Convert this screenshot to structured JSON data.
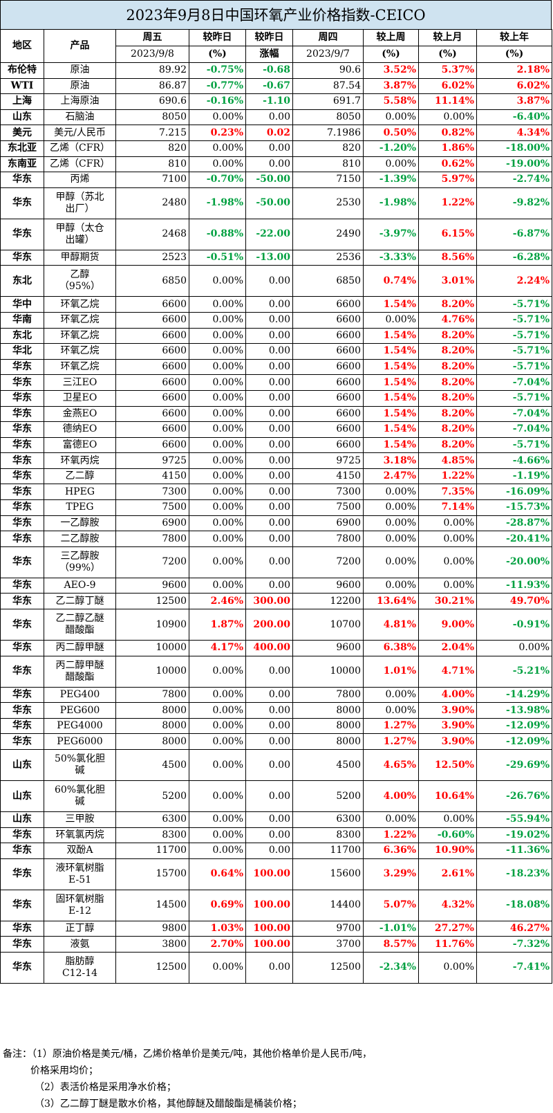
{
  "title": "2023年9月8日中国环氧产业价格指数-CEICO",
  "headers": {
    "region": "地区",
    "product": "产品",
    "fri": "周五",
    "dod": "较昨日",
    "dod2": "较昨日",
    "thu": "周四",
    "wow": "较上周",
    "mom": "较上月",
    "yoy": "较上年"
  },
  "subheaders": {
    "fri": "2023/9/8",
    "dod": "(%)",
    "dod2": "涨幅",
    "thu": "2023/9/7",
    "wow": "(%)",
    "mom": "(%)",
    "yoy": "(%)"
  },
  "colors": {
    "title_bg": "#cfe3f0",
    "up": "#ff0000",
    "down": "#00a040"
  },
  "rows": [
    {
      "region": "布伦特",
      "product": "原油",
      "fri": "89.92",
      "dod_pct": "-0.75%",
      "dod_amt": "-0.68",
      "thu": "90.6",
      "wow": "3.52%",
      "mom": "5.37%",
      "yoy": "2.18%"
    },
    {
      "region": "WTI",
      "product": "原油",
      "fri": "86.87",
      "dod_pct": "-0.77%",
      "dod_amt": "-0.67",
      "thu": "87.54",
      "wow": "3.87%",
      "mom": "6.02%",
      "yoy": "6.02%"
    },
    {
      "region": "上海",
      "product": "上海原油",
      "fri": "690.6",
      "dod_pct": "-0.16%",
      "dod_amt": "-1.10",
      "thu": "691.7",
      "wow": "5.58%",
      "mom": "11.14%",
      "yoy": "3.87%"
    },
    {
      "region": "山东",
      "product": "石脑油",
      "fri": "8050",
      "dod_pct": "0.00%",
      "dod_amt": "0.00",
      "thu": "8050",
      "wow": "0.00%",
      "mom": "0.00%",
      "yoy": "-6.40%"
    },
    {
      "region": "美元",
      "product": "美元/人民币",
      "fri": "7.215",
      "dod_pct": "0.23%",
      "dod_amt": "0.02",
      "thu": "7.1986",
      "wow": "0.50%",
      "mom": "0.82%",
      "yoy": "4.34%"
    },
    {
      "region": "东北亚",
      "product": "乙烯（CFR）",
      "fri": "820",
      "dod_pct": "0.00%",
      "dod_amt": "0.00",
      "thu": "820",
      "wow": "-1.20%",
      "mom": "1.86%",
      "yoy": "-18.00%"
    },
    {
      "region": "东南亚",
      "product": "乙烯（CFR）",
      "fri": "810",
      "dod_pct": "0.00%",
      "dod_amt": "0.00",
      "thu": "810",
      "wow": "0.00%",
      "mom": "0.62%",
      "yoy": "-19.00%"
    },
    {
      "region": "华东",
      "product": "丙烯",
      "fri": "7100",
      "dod_pct": "-0.70%",
      "dod_amt": "-50.00",
      "thu": "7150",
      "wow": "-1.39%",
      "mom": "5.97%",
      "yoy": "-2.74%"
    },
    {
      "region": "华东",
      "product": "甲醇（苏北\n出厂）",
      "fri": "2480",
      "dod_pct": "-1.98%",
      "dod_amt": "-50.00",
      "thu": "2530",
      "wow": "-1.98%",
      "mom": "1.22%",
      "yoy": "-9.82%"
    },
    {
      "region": "华东",
      "product": "甲醇（太仓\n出罐）",
      "fri": "2468",
      "dod_pct": "-0.88%",
      "dod_amt": "-22.00",
      "thu": "2490",
      "wow": "-3.97%",
      "mom": "6.15%",
      "yoy": "-6.87%"
    },
    {
      "region": "华东",
      "product": "甲醇期货",
      "fri": "2523",
      "dod_pct": "-0.51%",
      "dod_amt": "-13.00",
      "thu": "2536",
      "wow": "-3.33%",
      "mom": "8.56%",
      "yoy": "-6.28%"
    },
    {
      "region": "东北",
      "product": "乙醇\n（95%）",
      "fri": "6850",
      "dod_pct": "0.00%",
      "dod_amt": "0.00",
      "thu": "6850",
      "wow": "0.74%",
      "mom": "3.01%",
      "yoy": "2.24%"
    },
    {
      "region": "华中",
      "product": "环氧乙烷",
      "fri": "6600",
      "dod_pct": "0.00%",
      "dod_amt": "0.00",
      "thu": "6600",
      "wow": "1.54%",
      "mom": "8.20%",
      "yoy": "-5.71%"
    },
    {
      "region": "华南",
      "product": "环氧乙烷",
      "fri": "6600",
      "dod_pct": "0.00%",
      "dod_amt": "0.00",
      "thu": "6600",
      "wow": "0.00%",
      "mom": "4.76%",
      "yoy": "-5.71%"
    },
    {
      "region": "东北",
      "product": "环氧乙烷",
      "fri": "6600",
      "dod_pct": "0.00%",
      "dod_amt": "0.00",
      "thu": "6600",
      "wow": "1.54%",
      "mom": "8.20%",
      "yoy": "-5.71%"
    },
    {
      "region": "华北",
      "product": "环氧乙烷",
      "fri": "6600",
      "dod_pct": "0.00%",
      "dod_amt": "0.00",
      "thu": "6600",
      "wow": "1.54%",
      "mom": "8.20%",
      "yoy": "-5.71%"
    },
    {
      "region": "华东",
      "product": "环氧乙烷",
      "fri": "6600",
      "dod_pct": "0.00%",
      "dod_amt": "0.00",
      "thu": "6600",
      "wow": "1.54%",
      "mom": "8.20%",
      "yoy": "-5.71%"
    },
    {
      "region": "华东",
      "product": "三江EO",
      "fri": "6600",
      "dod_pct": "0.00%",
      "dod_amt": "0.00",
      "thu": "6600",
      "wow": "1.54%",
      "mom": "8.20%",
      "yoy": "-7.04%"
    },
    {
      "region": "华东",
      "product": "卫星EO",
      "fri": "6600",
      "dod_pct": "0.00%",
      "dod_amt": "0.00",
      "thu": "6600",
      "wow": "1.54%",
      "mom": "8.20%",
      "yoy": "-5.71%"
    },
    {
      "region": "华东",
      "product": "金燕EO",
      "fri": "6600",
      "dod_pct": "0.00%",
      "dod_amt": "0.00",
      "thu": "6600",
      "wow": "1.54%",
      "mom": "8.20%",
      "yoy": "-7.04%"
    },
    {
      "region": "华东",
      "product": "德纳EO",
      "fri": "6600",
      "dod_pct": "0.00%",
      "dod_amt": "0.00",
      "thu": "6600",
      "wow": "1.54%",
      "mom": "8.20%",
      "yoy": "-7.04%"
    },
    {
      "region": "华东",
      "product": "富德EO",
      "fri": "6600",
      "dod_pct": "0.00%",
      "dod_amt": "0.00",
      "thu": "6600",
      "wow": "1.54%",
      "mom": "8.20%",
      "yoy": "-5.71%"
    },
    {
      "region": "华东",
      "product": "环氧丙烷",
      "fri": "9725",
      "dod_pct": "0.00%",
      "dod_amt": "0.00",
      "thu": "9725",
      "wow": "3.18%",
      "mom": "4.85%",
      "yoy": "-4.66%"
    },
    {
      "region": "华东",
      "product": "乙二醇",
      "fri": "4150",
      "dod_pct": "0.00%",
      "dod_amt": "0.00",
      "thu": "4150",
      "wow": "2.47%",
      "mom": "1.22%",
      "yoy": "-1.19%"
    },
    {
      "region": "华东",
      "product": "HPEG",
      "fri": "7300",
      "dod_pct": "0.00%",
      "dod_amt": "0.00",
      "thu": "7300",
      "wow": "0.00%",
      "mom": "7.35%",
      "yoy": "-16.09%"
    },
    {
      "region": "华东",
      "product": "TPEG",
      "fri": "7500",
      "dod_pct": "0.00%",
      "dod_amt": "0.00",
      "thu": "7500",
      "wow": "0.00%",
      "mom": "7.14%",
      "yoy": "-15.73%"
    },
    {
      "region": "华东",
      "product": "一乙醇胺",
      "fri": "6900",
      "dod_pct": "0.00%",
      "dod_amt": "0.00",
      "thu": "6900",
      "wow": "0.00%",
      "mom": "0.00%",
      "yoy": "-28.87%"
    },
    {
      "region": "华东",
      "product": "二乙醇胺",
      "fri": "7800",
      "dod_pct": "0.00%",
      "dod_amt": "0.00",
      "thu": "7800",
      "wow": "0.00%",
      "mom": "0.00%",
      "yoy": "-20.41%"
    },
    {
      "region": "华东",
      "product": "三乙醇胺\n（99%）",
      "fri": "7200",
      "dod_pct": "0.00%",
      "dod_amt": "0.00",
      "thu": "7200",
      "wow": "0.00%",
      "mom": "0.00%",
      "yoy": "-20.00%"
    },
    {
      "region": "华东",
      "product": "AEO-9",
      "fri": "9600",
      "dod_pct": "0.00%",
      "dod_amt": "0.00",
      "thu": "9600",
      "wow": "0.00%",
      "mom": "0.00%",
      "yoy": "-11.93%"
    },
    {
      "region": "华东",
      "product": "乙二醇丁醚",
      "fri": "12500",
      "dod_pct": "2.46%",
      "dod_amt": "300.00",
      "thu": "12200",
      "wow": "13.64%",
      "mom": "30.21%",
      "yoy": "49.70%"
    },
    {
      "region": "华东",
      "product": "乙二醇乙醚\n醋酸酯",
      "fri": "10900",
      "dod_pct": "1.87%",
      "dod_amt": "200.00",
      "thu": "10700",
      "wow": "4.81%",
      "mom": "9.00%",
      "yoy": "-0.91%"
    },
    {
      "region": "华东",
      "product": "丙二醇甲醚",
      "fri": "10000",
      "dod_pct": "4.17%",
      "dod_amt": "400.00",
      "thu": "9600",
      "wow": "6.38%",
      "mom": "2.04%",
      "yoy": "0.00%"
    },
    {
      "region": "华东",
      "product": "丙二醇甲醚\n醋酸酯",
      "fri": "10000",
      "dod_pct": "0.00%",
      "dod_amt": "0.00",
      "thu": "10000",
      "wow": "1.01%",
      "mom": "4.71%",
      "yoy": "-5.21%"
    },
    {
      "region": "华东",
      "product": "PEG400",
      "fri": "7800",
      "dod_pct": "0.00%",
      "dod_amt": "0.00",
      "thu": "7800",
      "wow": "0.00%",
      "mom": "4.00%",
      "yoy": "-14.29%"
    },
    {
      "region": "华东",
      "product": "PEG600",
      "fri": "8000",
      "dod_pct": "0.00%",
      "dod_amt": "0.00",
      "thu": "8000",
      "wow": "0.00%",
      "mom": "3.90%",
      "yoy": "-13.98%"
    },
    {
      "region": "华东",
      "product": "PEG4000",
      "fri": "8000",
      "dod_pct": "0.00%",
      "dod_amt": "0.00",
      "thu": "8000",
      "wow": "1.27%",
      "mom": "3.90%",
      "yoy": "-12.09%"
    },
    {
      "region": "华东",
      "product": "PEG6000",
      "fri": "8000",
      "dod_pct": "0.00%",
      "dod_amt": "0.00",
      "thu": "8000",
      "wow": "1.27%",
      "mom": "3.90%",
      "yoy": "-12.09%"
    },
    {
      "region": "山东",
      "product": "50%氯化胆\n碱",
      "fri": "4500",
      "dod_pct": "0.00%",
      "dod_amt": "0.00",
      "thu": "4500",
      "wow": "4.65%",
      "mom": "12.50%",
      "yoy": "-29.69%"
    },
    {
      "region": "山东",
      "product": "60%氯化胆\n碱",
      "fri": "5200",
      "dod_pct": "0.00%",
      "dod_amt": "0.00",
      "thu": "5200",
      "wow": "4.00%",
      "mom": "10.64%",
      "yoy": "-26.76%"
    },
    {
      "region": "山东",
      "product": "三甲胺",
      "fri": "6300",
      "dod_pct": "0.00%",
      "dod_amt": "0.00",
      "thu": "6300",
      "wow": "0.00%",
      "mom": "0.00%",
      "yoy": "-55.94%"
    },
    {
      "region": "华东",
      "product": "环氧氯丙烷",
      "fri": "8300",
      "dod_pct": "0.00%",
      "dod_amt": "0.00",
      "thu": "8300",
      "wow": "1.22%",
      "mom": "-0.60%",
      "yoy": "-19.02%"
    },
    {
      "region": "华东",
      "product": "双酚A",
      "fri": "11700",
      "dod_pct": "0.00%",
      "dod_amt": "0.00",
      "thu": "11700",
      "wow": "6.36%",
      "mom": "10.90%",
      "yoy": "-11.36%"
    },
    {
      "region": "华东",
      "product": "液环氧树脂\nE-51",
      "fri": "15700",
      "dod_pct": "0.64%",
      "dod_amt": "100.00",
      "thu": "15600",
      "wow": "3.29%",
      "mom": "2.61%",
      "yoy": "-18.23%"
    },
    {
      "region": "华东",
      "product": "固环氧树脂\nE-12",
      "fri": "14500",
      "dod_pct": "0.69%",
      "dod_amt": "100.00",
      "thu": "14400",
      "wow": "5.07%",
      "mom": "4.32%",
      "yoy": "-18.08%"
    },
    {
      "region": "华东",
      "product": "正丁醇",
      "fri": "9800",
      "dod_pct": "1.03%",
      "dod_amt": "100.00",
      "thu": "9700",
      "wow": "-1.01%",
      "mom": "27.27%",
      "yoy": "46.27%"
    },
    {
      "region": "华东",
      "product": "液氨",
      "fri": "3800",
      "dod_pct": "2.70%",
      "dod_amt": "100.00",
      "thu": "3700",
      "wow": "8.57%",
      "mom": "11.76%",
      "yoy": "-7.32%"
    },
    {
      "region": "华东",
      "product": "脂肪醇\nC12-14",
      "fri": "12500",
      "dod_pct": "0.00%",
      "dod_amt": "0.00",
      "thu": "12500",
      "wow": "-2.34%",
      "mom": "0.00%",
      "yoy": "-7.41%"
    }
  ],
  "notes": [
    "备注：（1）原油价格是美元/桶，乙烯价格单价是美元/吨，其他价格单价是人民币/吨，",
    "价格采用均价；",
    "（2）表活价格是采用净水价格；",
    "（3）乙二醇丁醚是散水价格，其他醇醚及醋酸酯是桶装价格；"
  ]
}
